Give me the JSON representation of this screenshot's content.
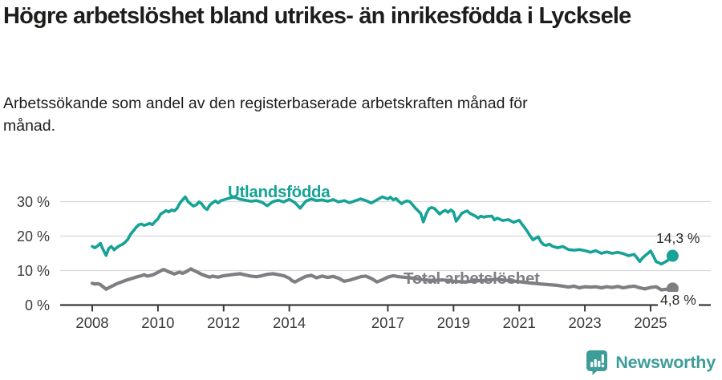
{
  "chart_data": {
    "type": "line",
    "title": "Högre arbetslöshet bland utrikes- än inrikesfödda i Lycksele",
    "subtitle": "Arbetssökande som andel av den registerbaserade arbetskraften månad för månad.",
    "grid": "horizontal",
    "grid_color": "#d8d8d8",
    "axis_color": "#3a3a3a",
    "xlim": [
      2007.9,
      2025.9
    ],
    "ylim": [
      0,
      33
    ],
    "x_ticks": [
      {
        "value": 2008,
        "label": "2008"
      },
      {
        "value": 2010,
        "label": "2010"
      },
      {
        "value": 2012,
        "label": "2012"
      },
      {
        "value": 2014,
        "label": "2014"
      },
      {
        "value": 2017,
        "label": "2017"
      },
      {
        "value": 2019,
        "label": "2019"
      },
      {
        "value": 2021,
        "label": "2021"
      },
      {
        "value": 2023,
        "label": "2023"
      },
      {
        "value": 2025,
        "label": "2025"
      }
    ],
    "y_ticks": [
      {
        "value": 0,
        "label": "0 %"
      },
      {
        "value": 10,
        "label": "10 %"
      },
      {
        "value": 20,
        "label": "20 %"
      },
      {
        "value": 30,
        "label": "30 %"
      }
    ],
    "series": [
      {
        "name": "Utlandsfödda",
        "color": "#16A296",
        "line_width": 3.6,
        "end_label": "14,3 %",
        "end_value": 14.3,
        "points": [
          [
            2008.0,
            17.0
          ],
          [
            2008.08,
            16.6
          ],
          [
            2008.17,
            17.2
          ],
          [
            2008.25,
            17.9
          ],
          [
            2008.33,
            16.1
          ],
          [
            2008.42,
            14.4
          ],
          [
            2008.5,
            16.4
          ],
          [
            2008.58,
            17.0
          ],
          [
            2008.67,
            16.0
          ],
          [
            2008.75,
            16.7
          ],
          [
            2008.83,
            17.2
          ],
          [
            2008.92,
            17.6
          ],
          [
            2009.0,
            18.2
          ],
          [
            2009.08,
            19.0
          ],
          [
            2009.17,
            20.6
          ],
          [
            2009.25,
            21.5
          ],
          [
            2009.33,
            22.5
          ],
          [
            2009.42,
            23.3
          ],
          [
            2009.5,
            23.5
          ],
          [
            2009.58,
            23.1
          ],
          [
            2009.67,
            23.4
          ],
          [
            2009.75,
            23.7
          ],
          [
            2009.83,
            23.3
          ],
          [
            2009.92,
            24.3
          ],
          [
            2010.0,
            25.0
          ],
          [
            2010.08,
            26.4
          ],
          [
            2010.17,
            26.9
          ],
          [
            2010.25,
            27.4
          ],
          [
            2010.33,
            27.0
          ],
          [
            2010.42,
            27.6
          ],
          [
            2010.5,
            27.3
          ],
          [
            2010.58,
            28.0
          ],
          [
            2010.67,
            29.6
          ],
          [
            2010.75,
            30.5
          ],
          [
            2010.83,
            31.4
          ],
          [
            2010.92,
            30.0
          ],
          [
            2011.0,
            29.3
          ],
          [
            2011.08,
            28.7
          ],
          [
            2011.17,
            29.1
          ],
          [
            2011.25,
            29.9
          ],
          [
            2011.33,
            29.4
          ],
          [
            2011.42,
            28.2
          ],
          [
            2011.5,
            27.7
          ],
          [
            2011.58,
            29.0
          ],
          [
            2011.67,
            29.7
          ],
          [
            2011.75,
            30.2
          ],
          [
            2011.83,
            29.6
          ],
          [
            2011.92,
            30.3
          ],
          [
            2012.0,
            30.5
          ],
          [
            2012.17,
            31.0
          ],
          [
            2012.33,
            31.3
          ],
          [
            2012.5,
            30.7
          ],
          [
            2012.67,
            30.4
          ],
          [
            2012.83,
            30.1
          ],
          [
            2013.0,
            30.3
          ],
          [
            2013.17,
            29.8
          ],
          [
            2013.33,
            28.8
          ],
          [
            2013.5,
            30.0
          ],
          [
            2013.67,
            30.4
          ],
          [
            2013.83,
            29.9
          ],
          [
            2014.0,
            30.7
          ],
          [
            2014.17,
            29.7
          ],
          [
            2014.33,
            28.1
          ],
          [
            2014.5,
            30.1
          ],
          [
            2014.67,
            30.8
          ],
          [
            2014.83,
            30.3
          ],
          [
            2015.0,
            30.5
          ],
          [
            2015.17,
            30.1
          ],
          [
            2015.33,
            30.6
          ],
          [
            2015.5,
            29.9
          ],
          [
            2015.67,
            30.3
          ],
          [
            2015.83,
            29.7
          ],
          [
            2016.0,
            30.2
          ],
          [
            2016.17,
            30.8
          ],
          [
            2016.33,
            30.3
          ],
          [
            2016.5,
            29.6
          ],
          [
            2016.67,
            30.5
          ],
          [
            2016.83,
            31.4
          ],
          [
            2017.0,
            30.8
          ],
          [
            2017.08,
            31.3
          ],
          [
            2017.17,
            30.5
          ],
          [
            2017.25,
            30.9
          ],
          [
            2017.33,
            30.1
          ],
          [
            2017.42,
            29.4
          ],
          [
            2017.5,
            29.9
          ],
          [
            2017.58,
            30.2
          ],
          [
            2017.67,
            30.0
          ],
          [
            2017.83,
            28.2
          ],
          [
            2018.0,
            26.6
          ],
          [
            2018.08,
            24.1
          ],
          [
            2018.17,
            26.5
          ],
          [
            2018.25,
            27.9
          ],
          [
            2018.33,
            28.3
          ],
          [
            2018.42,
            28.0
          ],
          [
            2018.58,
            26.4
          ],
          [
            2018.67,
            27.1
          ],
          [
            2018.75,
            27.5
          ],
          [
            2018.83,
            26.9
          ],
          [
            2018.92,
            27.6
          ],
          [
            2019.0,
            27.0
          ],
          [
            2019.08,
            24.3
          ],
          [
            2019.17,
            25.5
          ],
          [
            2019.25,
            26.6
          ],
          [
            2019.33,
            27.0
          ],
          [
            2019.42,
            27.3
          ],
          [
            2019.5,
            26.6
          ],
          [
            2019.67,
            25.8
          ],
          [
            2019.75,
            25.2
          ],
          [
            2019.83,
            25.8
          ],
          [
            2019.92,
            25.5
          ],
          [
            2020.0,
            25.7
          ],
          [
            2020.17,
            25.8
          ],
          [
            2020.25,
            24.7
          ],
          [
            2020.33,
            25.2
          ],
          [
            2020.5,
            24.5
          ],
          [
            2020.67,
            24.8
          ],
          [
            2020.83,
            24.0
          ],
          [
            2021.0,
            24.6
          ],
          [
            2021.08,
            23.5
          ],
          [
            2021.17,
            22.4
          ],
          [
            2021.25,
            21.3
          ],
          [
            2021.33,
            20.1
          ],
          [
            2021.42,
            18.9
          ],
          [
            2021.5,
            19.4
          ],
          [
            2021.58,
            19.8
          ],
          [
            2021.67,
            18.2
          ],
          [
            2021.75,
            17.5
          ],
          [
            2021.83,
            17.3
          ],
          [
            2021.92,
            17.7
          ],
          [
            2022.0,
            17.1
          ],
          [
            2022.17,
            16.6
          ],
          [
            2022.33,
            17.0
          ],
          [
            2022.5,
            16.1
          ],
          [
            2022.67,
            15.9
          ],
          [
            2022.83,
            16.1
          ],
          [
            2023.0,
            15.8
          ],
          [
            2023.17,
            15.3
          ],
          [
            2023.33,
            15.8
          ],
          [
            2023.5,
            15.0
          ],
          [
            2023.67,
            15.4
          ],
          [
            2023.83,
            15.0
          ],
          [
            2024.0,
            15.3
          ],
          [
            2024.17,
            14.9
          ],
          [
            2024.33,
            14.3
          ],
          [
            2024.5,
            14.7
          ],
          [
            2024.58,
            13.8
          ],
          [
            2024.67,
            12.6
          ],
          [
            2024.75,
            13.6
          ],
          [
            2024.83,
            14.3
          ],
          [
            2024.92,
            15.0
          ],
          [
            2025.0,
            15.7
          ],
          [
            2025.08,
            14.3
          ],
          [
            2025.17,
            12.6
          ],
          [
            2025.33,
            11.9
          ],
          [
            2025.5,
            12.8
          ],
          [
            2025.67,
            14.3
          ]
        ]
      },
      {
        "name": "Total arbetslöshet",
        "color": "#7E7E83",
        "line_width": 4.2,
        "end_label": "4,8 %",
        "end_value": 4.8,
        "points": [
          [
            2008.0,
            6.3
          ],
          [
            2008.08,
            6.1
          ],
          [
            2008.17,
            6.2
          ],
          [
            2008.25,
            5.9
          ],
          [
            2008.33,
            5.3
          ],
          [
            2008.42,
            4.6
          ],
          [
            2008.5,
            5.0
          ],
          [
            2008.58,
            5.4
          ],
          [
            2008.67,
            5.8
          ],
          [
            2008.75,
            6.2
          ],
          [
            2008.83,
            6.5
          ],
          [
            2008.92,
            6.8
          ],
          [
            2009.0,
            7.1
          ],
          [
            2009.17,
            7.6
          ],
          [
            2009.33,
            8.1
          ],
          [
            2009.5,
            8.5
          ],
          [
            2009.58,
            8.8
          ],
          [
            2009.67,
            8.4
          ],
          [
            2009.83,
            8.7
          ],
          [
            2009.92,
            9.1
          ],
          [
            2010.0,
            9.5
          ],
          [
            2010.08,
            9.9
          ],
          [
            2010.17,
            10.3
          ],
          [
            2010.25,
            10.0
          ],
          [
            2010.33,
            9.6
          ],
          [
            2010.42,
            9.3
          ],
          [
            2010.5,
            9.0
          ],
          [
            2010.58,
            9.3
          ],
          [
            2010.67,
            9.5
          ],
          [
            2010.75,
            9.2
          ],
          [
            2010.83,
            9.5
          ],
          [
            2010.92,
            10.0
          ],
          [
            2011.0,
            10.5
          ],
          [
            2011.08,
            10.1
          ],
          [
            2011.17,
            9.7
          ],
          [
            2011.25,
            9.3
          ],
          [
            2011.33,
            8.9
          ],
          [
            2011.42,
            8.6
          ],
          [
            2011.5,
            8.3
          ],
          [
            2011.58,
            8.1
          ],
          [
            2011.67,
            8.4
          ],
          [
            2011.75,
            8.2
          ],
          [
            2011.83,
            8.1
          ],
          [
            2011.92,
            8.3
          ],
          [
            2012.0,
            8.5
          ],
          [
            2012.17,
            8.7
          ],
          [
            2012.33,
            8.9
          ],
          [
            2012.5,
            9.1
          ],
          [
            2012.67,
            8.7
          ],
          [
            2012.83,
            8.4
          ],
          [
            2013.0,
            8.2
          ],
          [
            2013.17,
            8.5
          ],
          [
            2013.33,
            8.9
          ],
          [
            2013.5,
            9.1
          ],
          [
            2013.67,
            8.8
          ],
          [
            2013.83,
            8.5
          ],
          [
            2014.0,
            7.8
          ],
          [
            2014.08,
            7.1
          ],
          [
            2014.17,
            6.7
          ],
          [
            2014.33,
            7.5
          ],
          [
            2014.5,
            8.3
          ],
          [
            2014.67,
            8.6
          ],
          [
            2014.83,
            7.9
          ],
          [
            2015.0,
            8.4
          ],
          [
            2015.17,
            8.0
          ],
          [
            2015.33,
            8.3
          ],
          [
            2015.5,
            7.8
          ],
          [
            2015.67,
            6.9
          ],
          [
            2015.83,
            7.2
          ],
          [
            2016.0,
            7.7
          ],
          [
            2016.17,
            8.2
          ],
          [
            2016.33,
            8.4
          ],
          [
            2016.5,
            7.7
          ],
          [
            2016.67,
            6.7
          ],
          [
            2016.83,
            7.3
          ],
          [
            2017.0,
            8.1
          ],
          [
            2017.17,
            8.5
          ],
          [
            2017.33,
            8.2
          ],
          [
            2017.67,
            7.9
          ],
          [
            2018.0,
            7.5
          ],
          [
            2018.33,
            7.1
          ],
          [
            2018.67,
            7.3
          ],
          [
            2019.0,
            6.9
          ],
          [
            2019.33,
            6.7
          ],
          [
            2019.67,
            7.0
          ],
          [
            2020.0,
            7.2
          ],
          [
            2020.33,
            7.5
          ],
          [
            2020.67,
            7.1
          ],
          [
            2021.0,
            6.8
          ],
          [
            2021.33,
            6.4
          ],
          [
            2021.67,
            6.1
          ],
          [
            2021.92,
            5.9
          ],
          [
            2022.08,
            5.8
          ],
          [
            2022.17,
            5.7
          ],
          [
            2022.33,
            5.5
          ],
          [
            2022.5,
            5.2
          ],
          [
            2022.67,
            5.5
          ],
          [
            2022.83,
            5.0
          ],
          [
            2023.0,
            5.3
          ],
          [
            2023.17,
            5.2
          ],
          [
            2023.33,
            5.3
          ],
          [
            2023.5,
            5.0
          ],
          [
            2023.67,
            5.3
          ],
          [
            2023.83,
            5.1
          ],
          [
            2024.0,
            5.4
          ],
          [
            2024.17,
            5.0
          ],
          [
            2024.33,
            5.3
          ],
          [
            2024.5,
            5.5
          ],
          [
            2024.67,
            5.0
          ],
          [
            2024.83,
            4.7
          ],
          [
            2025.0,
            5.1
          ],
          [
            2025.17,
            5.3
          ],
          [
            2025.33,
            4.4
          ],
          [
            2025.5,
            4.6
          ],
          [
            2025.67,
            4.8
          ]
        ]
      }
    ]
  },
  "branding": {
    "logo_text": "Newsworthy",
    "logo_icon": "newsworthy-bar-chart-bubble-icon",
    "logo_color": "#3D9D99"
  }
}
